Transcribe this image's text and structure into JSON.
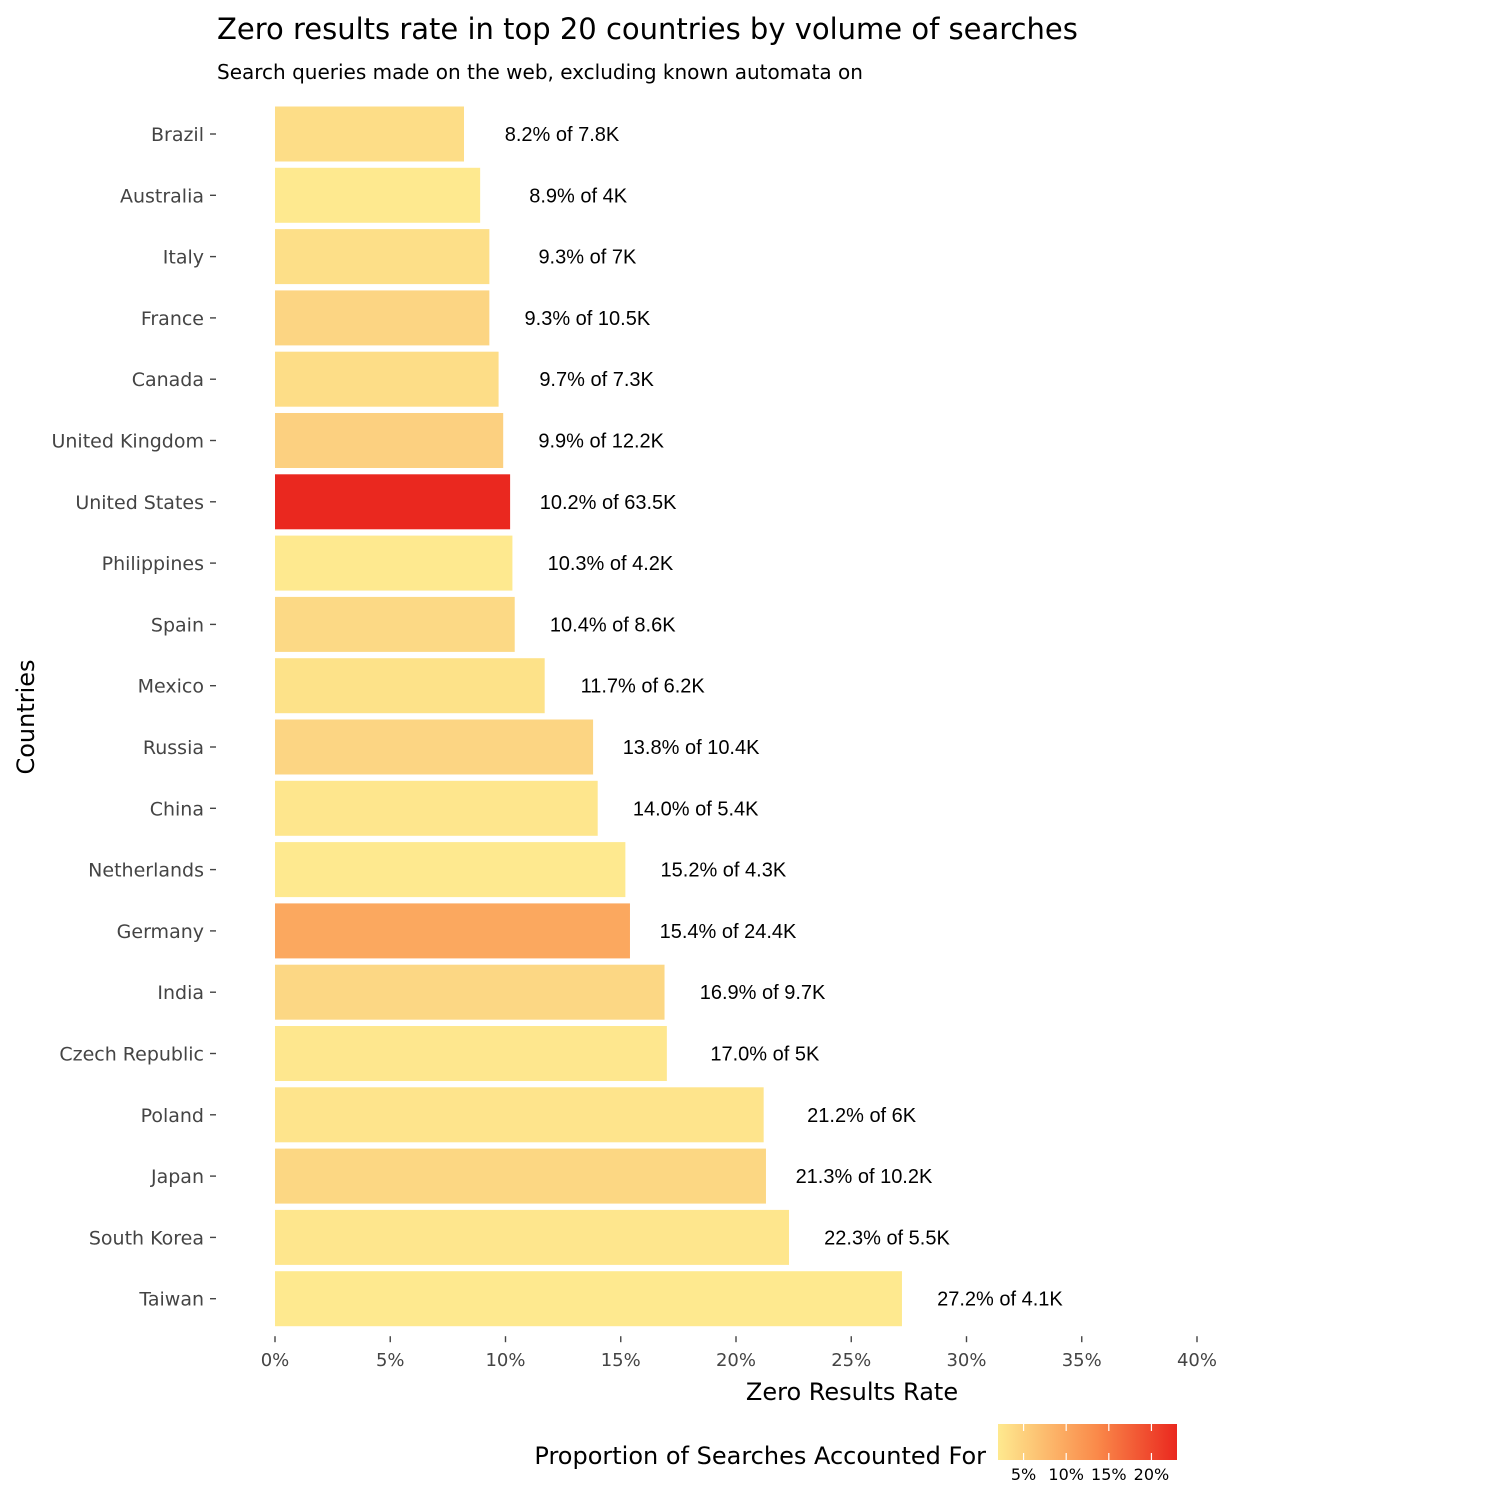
{
  "chart_data": {
    "type": "bar",
    "orientation": "horizontal",
    "title": "Zero results rate in top 20 countries by volume of searches",
    "subtitle": "Search queries made on the web, excluding known automata on",
    "xlabel": "Zero Results Rate",
    "ylabel": "Countries",
    "xlim": [
      0,
      0.4
    ],
    "x_ticks": [
      0,
      0.05,
      0.1,
      0.15,
      0.2,
      0.25,
      0.3,
      0.35,
      0.4
    ],
    "x_tick_labels": [
      "0%",
      "5%",
      "10%",
      "15%",
      "20%",
      "25%",
      "30%",
      "35%",
      "40%"
    ],
    "grid": false,
    "categories": [
      "Brazil",
      "Australia",
      "Italy",
      "France",
      "Canada",
      "United Kingdom",
      "United States",
      "Philippines",
      "Spain",
      "Mexico",
      "Russia",
      "China",
      "Netherlands",
      "Germany",
      "India",
      "Czech Republic",
      "Poland",
      "Japan",
      "South Korea",
      "Taiwan"
    ],
    "values": [
      0.082,
      0.089,
      0.093,
      0.093,
      0.097,
      0.099,
      0.102,
      0.103,
      0.104,
      0.117,
      0.138,
      0.14,
      0.152,
      0.154,
      0.169,
      0.17,
      0.212,
      0.213,
      0.223,
      0.272
    ],
    "proportion": [
      0.039,
      0.02,
      0.035,
      0.052,
      0.036,
      0.061,
      0.317,
      0.021,
      0.043,
      0.031,
      0.052,
      0.027,
      0.021,
      0.122,
      0.048,
      0.025,
      0.03,
      0.051,
      0.027,
      0.02
    ],
    "data_labels": [
      "8.2% of 7.8K",
      "8.9% of 4K",
      "9.3% of 7K",
      "9.3% of 10.5K",
      "9.7% of 7.3K",
      "9.9% of 12.2K",
      "10.2% of 63.5K",
      "10.3% of 4.2K",
      "10.4% of 8.6K",
      "11.7% of 6.2K",
      "13.8% of 10.4K",
      "14.0% of 5.4K",
      "15.2% of 4.3K",
      "15.4% of 24.4K",
      "16.9% of 9.7K",
      "17.0% of 5K",
      "21.2% of 6K",
      "21.3% of 10.2K",
      "22.3% of 5.5K",
      "27.2% of 4.1K"
    ],
    "bar_colors": [
      "#fddd87",
      "#fee98f",
      "#fddf88",
      "#fcd583",
      "#fddd87",
      "#fcd080",
      "#ea281f",
      "#fee98f",
      "#fcd985",
      "#fde289",
      "#fcd583",
      "#fee68d",
      "#fee98f",
      "#fba85f",
      "#fcd784",
      "#fee78e",
      "#fee48c",
      "#fcd783",
      "#fee68d",
      "#fee98f"
    ],
    "legend": {
      "title": "Proportion of Searches Accounted For",
      "position": "bottom",
      "tick_labels": [
        "5%",
        "10%",
        "15%",
        "20%"
      ],
      "ticks": [
        0.05,
        0.1,
        0.15,
        0.2
      ],
      "range": [
        0.02,
        0.23
      ],
      "color_low": "#fee98f",
      "color_mid": "#fa8a4a",
      "color_high": "#ea281f"
    }
  }
}
